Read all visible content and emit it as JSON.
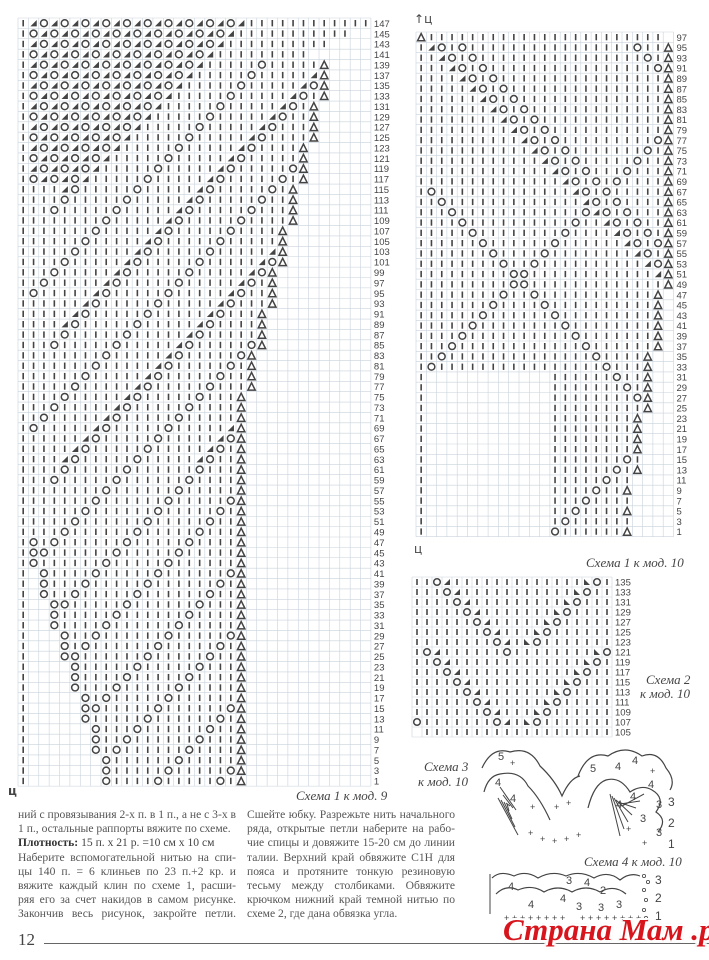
{
  "charts": {
    "scheme1_mod9": {
      "caption": "Схема 1 к мод. 9",
      "center_mark": "ц",
      "row_labels": {
        "first": 1,
        "last": 147,
        "step": 2
      }
    },
    "scheme1_mod10": {
      "caption": "Схема 1 к мод. 10",
      "center_mark_top": "ц",
      "center_mark_bottom": "ц",
      "row_labels": {
        "first": 1,
        "last": 97,
        "step": 2
      }
    },
    "scheme2_mod10": {
      "caption_line1": "Схема 2",
      "caption_line2": "к мод. 10",
      "row_labels": {
        "first": 105,
        "last": 135,
        "step": 2
      }
    },
    "scheme3_mod10": {
      "caption_line1": "Схема 3",
      "caption_line2": "к мод. 10",
      "row_numbers": [
        "3",
        "2",
        "1"
      ],
      "inner_numbers": [
        "5",
        "4",
        "4",
        "5",
        "4",
        "4",
        "4",
        "4",
        "4",
        "3",
        "3",
        "3"
      ]
    },
    "scheme4_mod10": {
      "caption": "Схема 4 к мод. 10",
      "row_numbers": [
        "3",
        "2",
        "1"
      ],
      "inner_numbers": [
        "4",
        "4",
        "3",
        "4",
        "4",
        "2",
        "3",
        "3",
        "3"
      ]
    }
  },
  "text": {
    "left_column": [
      "ний с провязывания 2-х п. в 1 п., а не с 3-х в",
      "1 п., остальные раппорты вяжите по схеме.",
      "Наберите вспомогательной нитью на спи-",
      "цы 140 п. = 6 клиньев по 23 п.+2 кр. и",
      "вяжите каждый клин по схеме 1, расши-",
      "ряя его за счет накидов в самом рисунке.",
      "Закончив весь рисунок, закройте петли."
    ],
    "density_label": "Плотность:",
    "density_value": " 15 п. х 21 р. =10 см х 10 см",
    "right_column": [
      "Сшейте юбку. Разрежьте нить начального",
      "ряда, открытые петли наберите на рабо-",
      "чие спицы и довяжите 15-20 см до линии",
      "талии. Верхний край обвяжите С1Н для",
      "пояса и протяните тонкую резиновую",
      "тесьму между столбиками. Обвяжите",
      "крючком нижний край темной нитью по",
      "схеме 2, где дана обвязка угла."
    ]
  },
  "footer": {
    "page_number": "12",
    "watermark": "Страна Мам .ру"
  },
  "colors": {
    "ink": "#444444",
    "grid": "#c9d3dc",
    "watermark": "#d8141c"
  }
}
